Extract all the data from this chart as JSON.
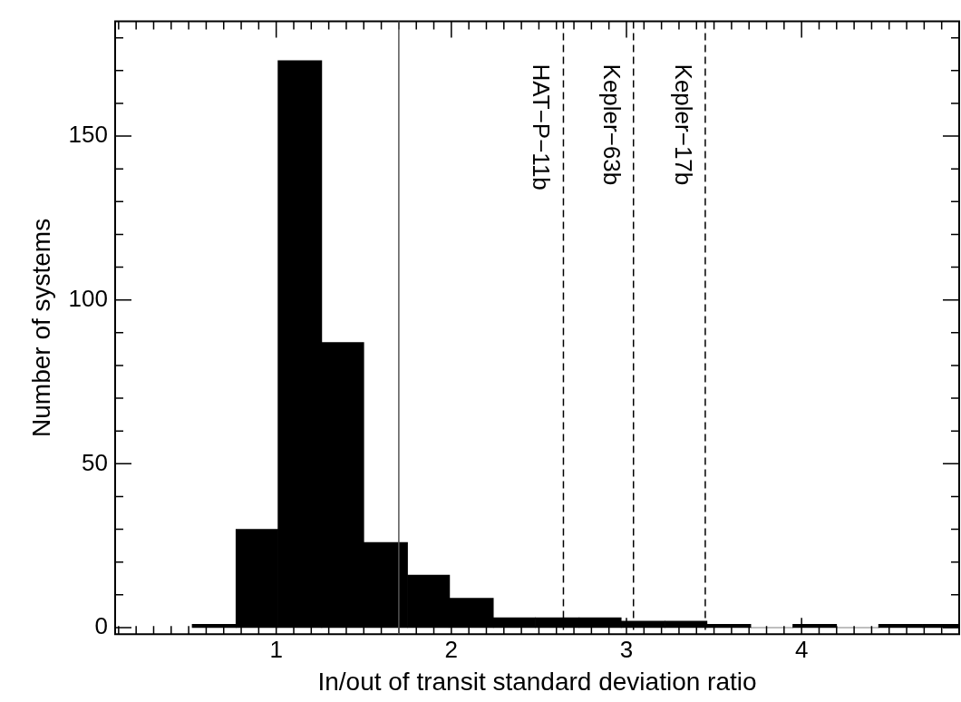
{
  "chart_data": {
    "type": "histogram",
    "xlabel": "In/out of transit standard deviation ratio",
    "ylabel": "Number of systems",
    "bins": [
      0.52,
      0.77,
      1.01,
      1.26,
      1.5,
      1.75,
      1.99,
      2.24,
      2.48,
      2.73,
      2.97,
      3.22,
      3.46,
      3.71,
      3.95,
      4.2,
      4.44,
      4.69,
      4.9
    ],
    "values": [
      1,
      30,
      173,
      87,
      26,
      16,
      9,
      3,
      3,
      3,
      2,
      2,
      1,
      0,
      1,
      0,
      1,
      1
    ],
    "color": "#000000",
    "xlim": [
      0.08,
      4.9
    ],
    "xticks": [
      1,
      2,
      3,
      4
    ],
    "ylim": [
      -2,
      185
    ],
    "yticks": [
      0,
      50,
      100,
      150
    ],
    "ref_lines": [
      {
        "axis": "x",
        "value": 1.7,
        "label": null,
        "color": "#555555",
        "line_style": "solid"
      },
      {
        "axis": "x",
        "value": 2.64,
        "label": "HAT−P−11b",
        "color": "#000000",
        "line_style": "dashed"
      },
      {
        "axis": "x",
        "value": 3.04,
        "label": "Kepler−63b",
        "color": "#000000",
        "line_style": "dashed"
      },
      {
        "axis": "x",
        "value": 3.45,
        "label": "Kepler−17b",
        "color": "#000000",
        "line_style": "dashed"
      }
    ],
    "grid": false,
    "legend": false
  }
}
